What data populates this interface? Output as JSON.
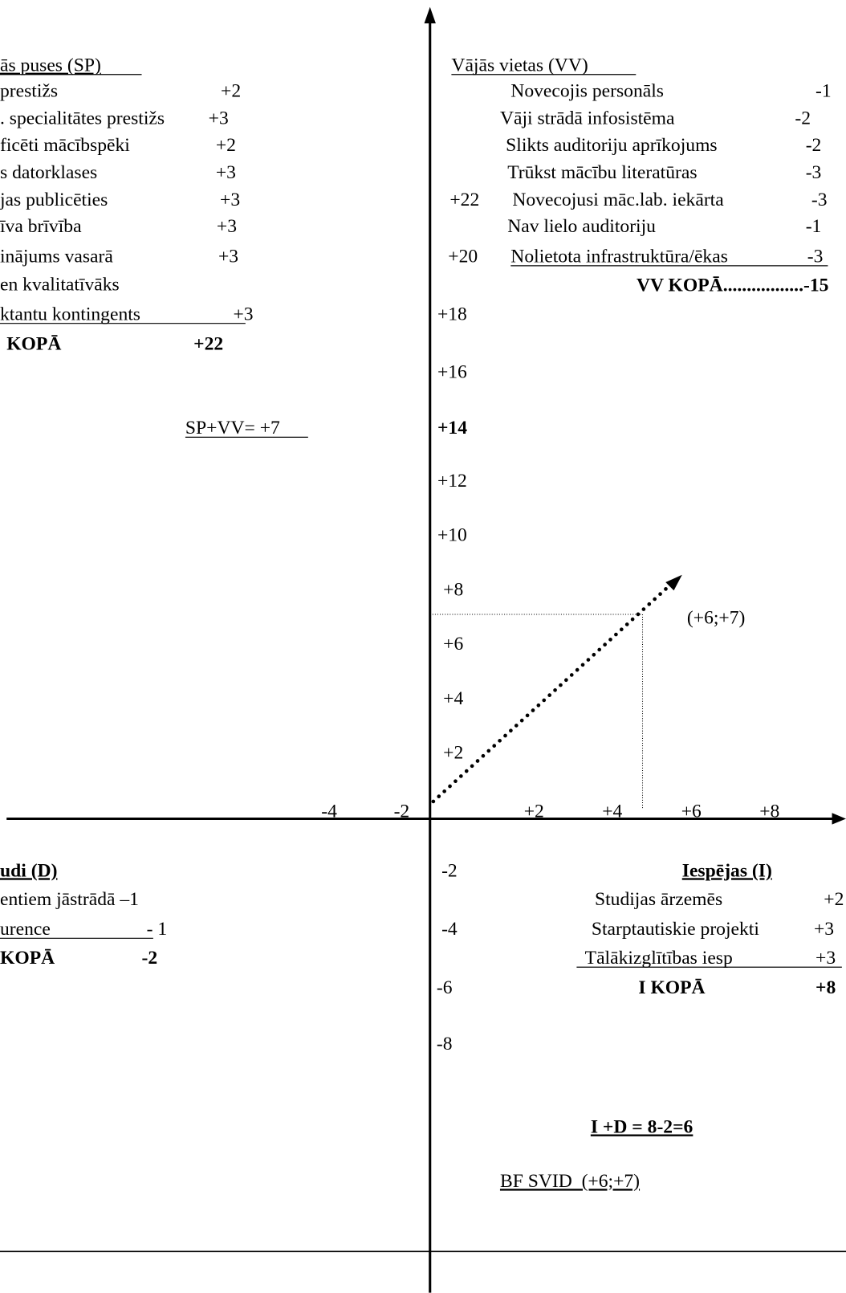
{
  "sp": {
    "title": "ās puses (SP)",
    "items": [
      {
        "label": "prestižs",
        "value": "+2"
      },
      {
        "label": ". specialitātes prestižs",
        "value": "+3"
      },
      {
        "label": "ficēti mācībspēki",
        "value": "+2"
      },
      {
        "label": "s datorklases",
        "value": "+3"
      },
      {
        "label": "jas publicēties",
        "value": "+3"
      },
      {
        "label": "īva brīvība",
        "value": "+3"
      },
      {
        "label": "inājums vasarā",
        "value": "+3"
      },
      {
        "label": "en kvalitatīvāks"
      },
      {
        "label": "ktantu kontingents",
        "value": "+3"
      }
    ],
    "total": {
      "label": "KOPĀ",
      "value": "+22"
    }
  },
  "vv": {
    "title": "Vājās vietas (VV)",
    "items": [
      {
        "label": "Novecojis personāls",
        "value": "-1"
      },
      {
        "label": "Vāji strādā infosistēma",
        "value": "-2"
      },
      {
        "label": "Slikts auditoriju aprīkojums",
        "value": "-2"
      },
      {
        "label": "Trūkst mācību literatūras",
        "value": "-3"
      },
      {
        "label": "Novecojusi māc.lab. iekārta",
        "value": "-3"
      },
      {
        "label": "Nav lielo auditoriju",
        "value": "-1"
      },
      {
        "label": "Nolietota infrastruktūra/ēkas",
        "value": "-3"
      }
    ],
    "total": "VV KOPĀ.................-15"
  },
  "sp_vv": "SP+VV= +7",
  "y_labels": [
    "+22",
    "+20",
    "+18",
    "+16",
    "+14",
    "+12",
    "+10",
    "+8",
    "+6",
    "+4",
    "+2",
    "-2",
    "-4",
    "-6",
    "-8"
  ],
  "x_labels": [
    "-4",
    "-2",
    "+2",
    "+4",
    "+6",
    "+8"
  ],
  "point": "(+6;+7)",
  "d": {
    "title": "udi (D)",
    "items": [
      {
        "label": "entiem jāstrādā –1"
      },
      {
        "label": "urence",
        "value": "- 1"
      }
    ],
    "total": {
      "label": "KOPĀ",
      "value": "-2"
    }
  },
  "i": {
    "title": "Iespējas (I)",
    "items": [
      {
        "label": "Studijas ārzemēs",
        "value": "+2"
      },
      {
        "label": "Starptautiskie projekti",
        "value": "+3"
      },
      {
        "label": "Tālākizglītības iesp",
        "value": "+3"
      }
    ],
    "total": {
      "label": "I KOPĀ",
      "value": "+8"
    }
  },
  "formula": "I +D = 8-2=6",
  "result": "BF SVID  (+6;+7)"
}
